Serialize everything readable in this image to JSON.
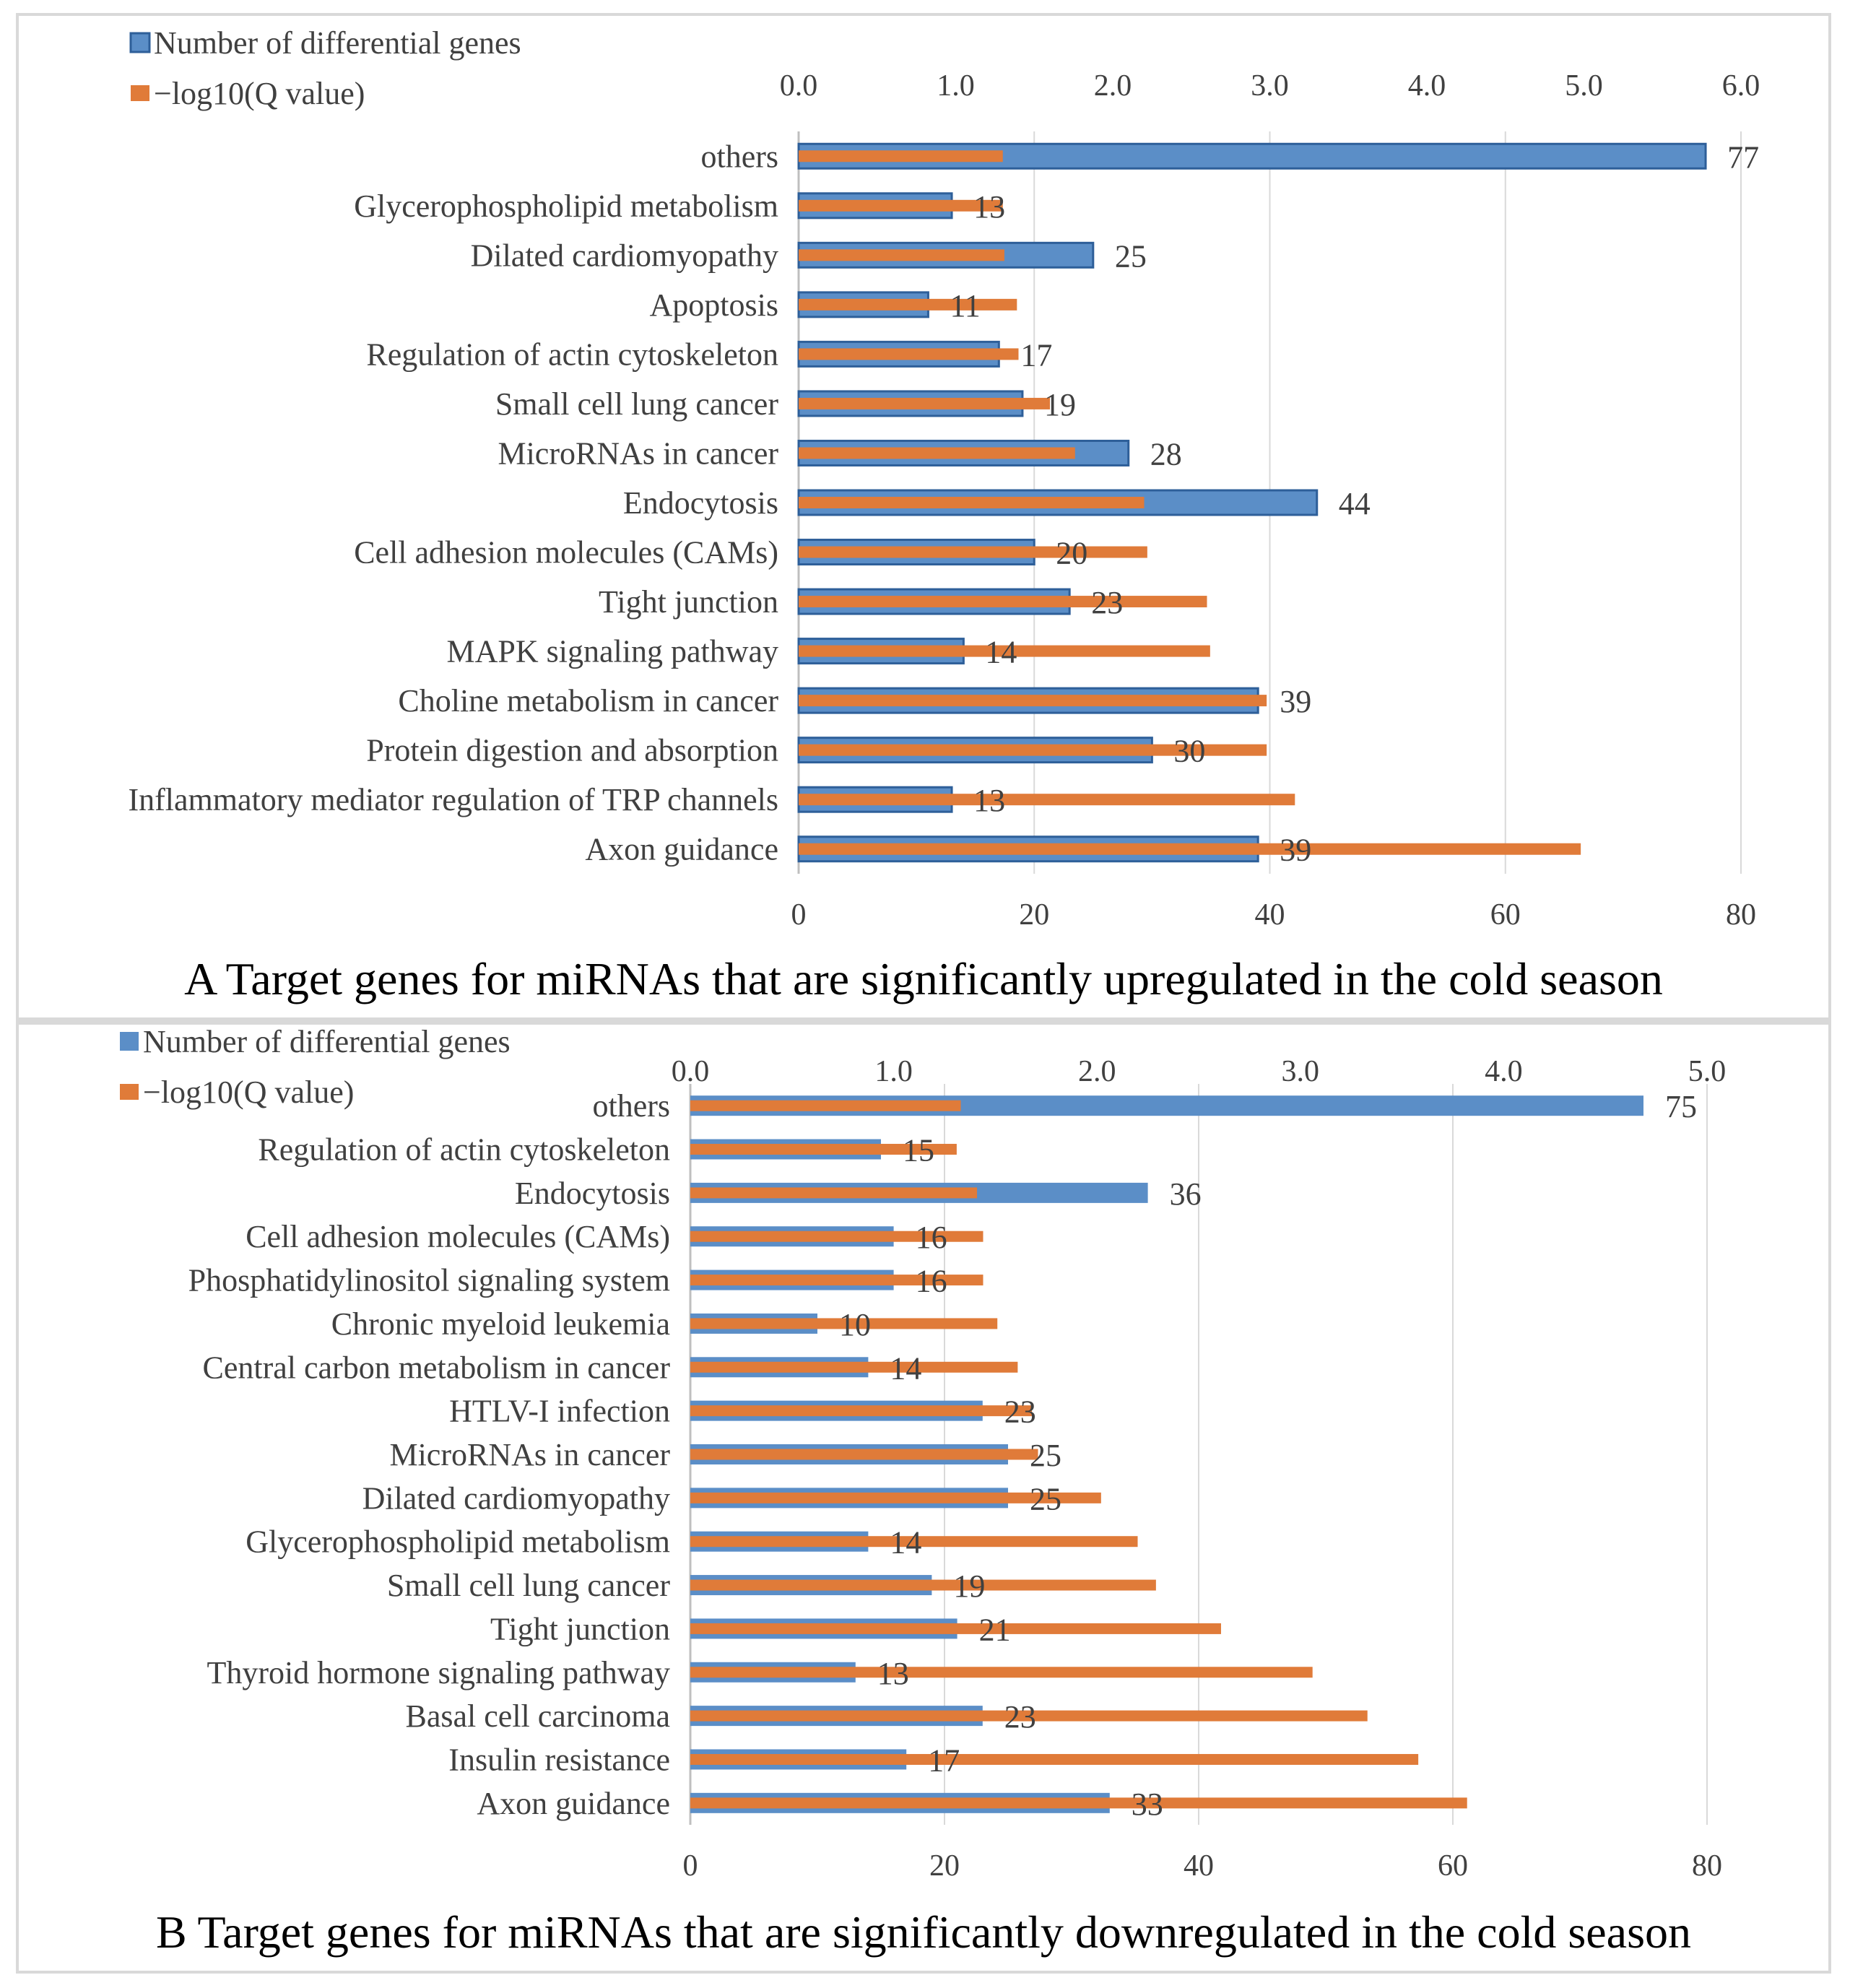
{
  "colors": {
    "blue": "#5b8ec7",
    "blue_edge": "#2e5f99",
    "orange": "#e07b39",
    "grid": "#d9d9d9",
    "axis": "#bfbfbf"
  },
  "chart_data": [
    {
      "type": "bar",
      "caption": "A Target genes for miRNAs that are significantly upregulated in the cold season",
      "legend": [
        "Number of differential genes",
        "−log10(Q value)"
      ],
      "categories": [
        "others",
        "Glycerophospholipid metabolism",
        "Dilated cardiomyopathy",
        "Apoptosis",
        "Regulation of actin cytoskeleton",
        "Small cell lung cancer",
        "MicroRNAs in cancer",
        "Endocytosis",
        "Cell adhesion molecules (CAMs)",
        "Tight junction",
        "MAPK signaling pathway",
        "Choline metabolism in cancer",
        "Protein digestion and absorption",
        "Inflammatory mediator regulation of TRP channels",
        "Axon guidance"
      ],
      "series": [
        {
          "name": "Number of differential genes",
          "axis": "bottom",
          "values": [
            77,
            13,
            25,
            11,
            17,
            19,
            28,
            44,
            20,
            23,
            14,
            39,
            30,
            13,
            39
          ]
        },
        {
          "name": "−log10(Q value)",
          "axis": "top",
          "values": [
            1.3,
            1.3,
            1.31,
            1.39,
            1.4,
            1.6,
            1.76,
            2.2,
            2.22,
            2.6,
            2.62,
            2.98,
            2.98,
            3.16,
            4.98
          ]
        }
      ],
      "bottom_axis": {
        "min": 0,
        "max": 80,
        "ticks": [
          "0",
          "20",
          "40",
          "60",
          "80"
        ]
      },
      "top_axis": {
        "min": 0,
        "max": 6,
        "ticks": [
          "0.0",
          "1.0",
          "2.0",
          "3.0",
          "4.0",
          "5.0",
          "6.0"
        ]
      },
      "bar_edge": true
    },
    {
      "type": "bar",
      "caption": "B Target genes for miRNAs that are significantly downregulated in the cold season",
      "legend": [
        "Number of differential genes",
        "−log10(Q value)"
      ],
      "categories": [
        "others",
        "Regulation of actin cytoskeleton",
        "Endocytosis",
        "Cell adhesion molecules (CAMs)",
        "Phosphatidylinositol signaling system",
        "Chronic myeloid leukemia",
        "Central carbon metabolism in cancer",
        "HTLV-I infection",
        "MicroRNAs in cancer",
        "Dilated cardiomyopathy",
        "Glycerophospholipid metabolism",
        "Small cell lung cancer",
        "Tight junction",
        "Thyroid hormone signaling pathway",
        "Basal cell carcinoma",
        "Insulin resistance",
        "Axon guidance"
      ],
      "series": [
        {
          "name": "Number of differential genes",
          "axis": "bottom",
          "values": [
            75,
            15,
            36,
            16,
            16,
            10,
            14,
            23,
            25,
            25,
            14,
            19,
            21,
            13,
            23,
            17,
            33
          ]
        },
        {
          "name": "−log10(Q value)",
          "axis": "top",
          "values": [
            1.33,
            1.31,
            1.41,
            1.44,
            1.44,
            1.51,
            1.61,
            1.68,
            1.71,
            2.02,
            2.2,
            2.29,
            2.61,
            3.06,
            3.33,
            3.58,
            3.82
          ]
        }
      ],
      "bottom_axis": {
        "min": 0,
        "max": 80,
        "ticks": [
          "0",
          "20",
          "40",
          "60",
          "80"
        ]
      },
      "top_axis": {
        "min": 0,
        "max": 5,
        "ticks": [
          "0.0",
          "1.0",
          "2.0",
          "3.0",
          "4.0",
          "5.0"
        ]
      },
      "bar_edge": false
    }
  ]
}
